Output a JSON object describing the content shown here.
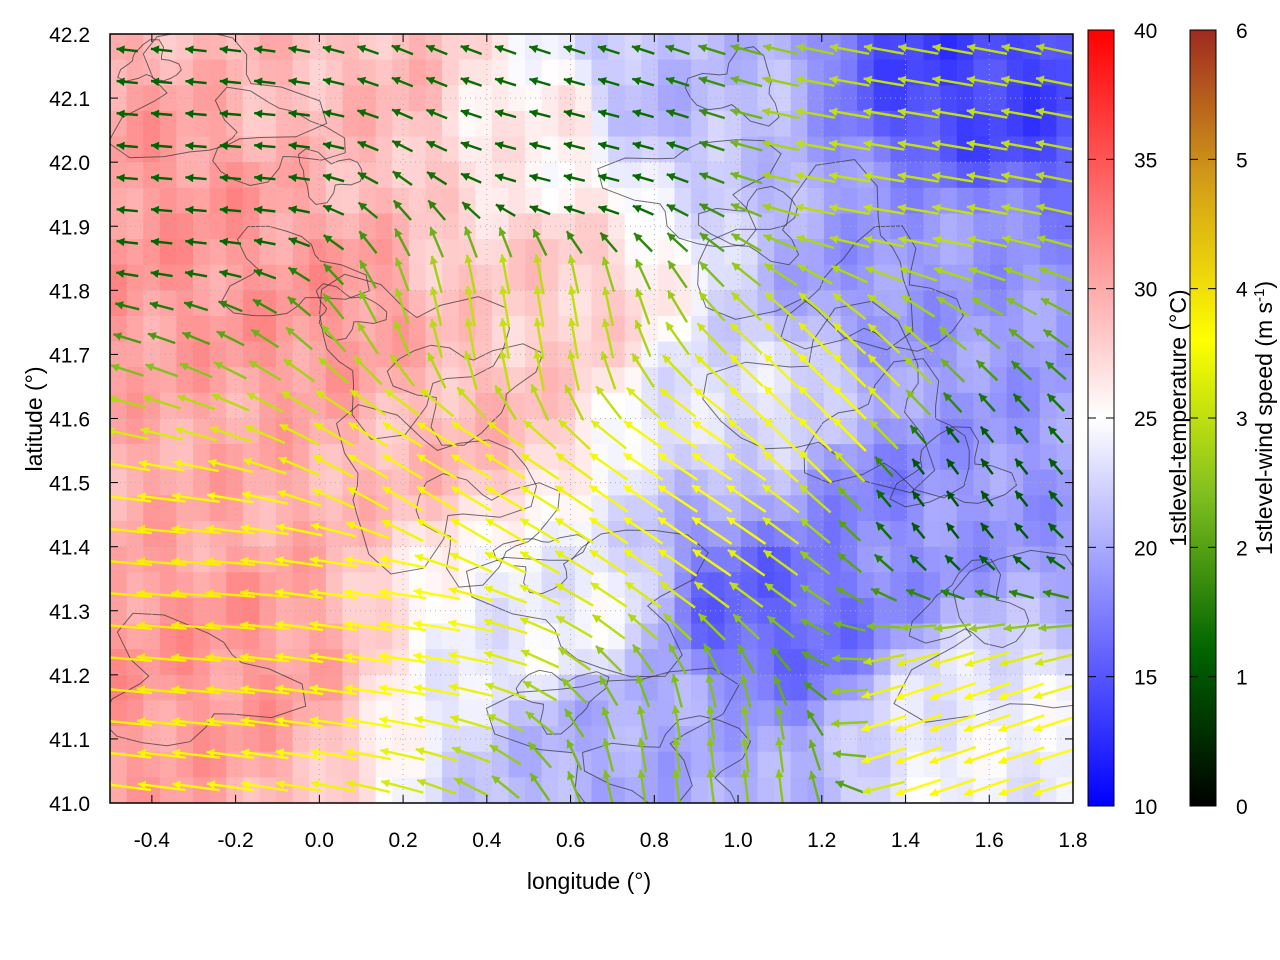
{
  "chart_data": {
    "type": "heatmap",
    "xlabel": "longitude (°)",
    "ylabel": "latitude (°)",
    "xlim": [
      -0.5,
      1.8
    ],
    "ylim": [
      41.0,
      42.2
    ],
    "xticks": [
      "-0.4",
      "-0.2",
      "0.0",
      "0.2",
      "0.4",
      "0.6",
      "0.8",
      "1.0",
      "1.2",
      "1.4",
      "1.6",
      "1.8"
    ],
    "yticks": [
      "41.0",
      "41.1",
      "41.2",
      "41.3",
      "41.4",
      "41.5",
      "41.6",
      "41.7",
      "41.8",
      "41.9",
      "42.0",
      "42.1",
      "42.2"
    ],
    "grid": true,
    "temperature_colorbar": {
      "label": "1stlevel-temperature (°C)",
      "range": [
        10,
        40
      ],
      "ticks": [
        "10",
        "15",
        "20",
        "25",
        "30",
        "35",
        "40"
      ],
      "colors": [
        "#0000ff",
        "#ffffff",
        "#ff0000"
      ]
    },
    "wind_colorbar": {
      "label": "1stlevel-wind speed (m s",
      "label_sup": "-1",
      "label_end": ")",
      "range": [
        0,
        6
      ],
      "ticks": [
        "0",
        "1",
        "2",
        "3",
        "4",
        "5",
        "6"
      ],
      "colors": [
        "#000000",
        "#006400",
        "#7fbf1f",
        "#ffff00",
        "#d4a017",
        "#9e2a20"
      ]
    },
    "temperature_regions": [
      {
        "lon": -0.35,
        "lat": 41.9,
        "t": 31
      },
      {
        "lon": -0.3,
        "lat": 41.5,
        "t": 30
      },
      {
        "lon": -0.3,
        "lat": 41.25,
        "t": 31
      },
      {
        "lon": 0.0,
        "lat": 41.75,
        "t": 31
      },
      {
        "lon": 0.1,
        "lat": 42.1,
        "t": 29
      },
      {
        "lon": 0.3,
        "lat": 41.6,
        "t": 29
      },
      {
        "lon": 0.5,
        "lat": 41.8,
        "t": 28
      },
      {
        "lon": 0.55,
        "lat": 42.05,
        "t": 26
      },
      {
        "lon": 0.6,
        "lat": 41.3,
        "t": 24
      },
      {
        "lon": 0.8,
        "lat": 41.1,
        "t": 20
      },
      {
        "lon": 1.05,
        "lat": 41.3,
        "t": 16
      },
      {
        "lon": 1.1,
        "lat": 41.6,
        "t": 23
      },
      {
        "lon": 1.3,
        "lat": 41.5,
        "t": 18
      },
      {
        "lon": 1.4,
        "lat": 41.8,
        "t": 19
      },
      {
        "lon": 1.6,
        "lat": 42.15,
        "t": 14
      },
      {
        "lon": 1.6,
        "lat": 41.5,
        "t": 19
      },
      {
        "lon": 1.6,
        "lat": 41.1,
        "t": 24
      },
      {
        "lon": 0.8,
        "lat": 42.1,
        "t": 21
      }
    ],
    "wind_regions": [
      {
        "lon": -0.3,
        "lat": 42.0,
        "u": -1.2,
        "v": 0.1
      },
      {
        "lon": -0.3,
        "lat": 41.3,
        "u": -3.8,
        "v": 0.3
      },
      {
        "lon": 0.1,
        "lat": 41.3,
        "u": -3.6,
        "v": 0.5
      },
      {
        "lon": 0.3,
        "lat": 41.5,
        "u": -3.0,
        "v": 1.8
      },
      {
        "lon": 0.5,
        "lat": 41.75,
        "u": -0.5,
        "v": 3.0
      },
      {
        "lon": 0.6,
        "lat": 42.0,
        "u": -1.2,
        "v": 0.3
      },
      {
        "lon": 0.9,
        "lat": 41.5,
        "u": -3.0,
        "v": 2.0
      },
      {
        "lon": 1.2,
        "lat": 41.6,
        "u": -2.5,
        "v": 2.5
      },
      {
        "lon": 1.5,
        "lat": 41.5,
        "u": -0.6,
        "v": 0.8
      },
      {
        "lon": 1.4,
        "lat": 42.0,
        "u": -3.0,
        "v": 0.5
      },
      {
        "lon": 1.5,
        "lat": 41.1,
        "u": -3.5,
        "v": -1.2
      },
      {
        "lon": 1.0,
        "lat": 41.05,
        "u": -0.3,
        "v": 2.5
      }
    ]
  }
}
